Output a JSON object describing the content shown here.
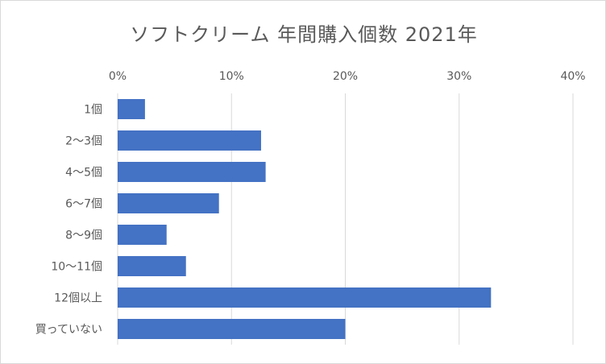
{
  "chart_data": {
    "type": "bar",
    "orientation": "horizontal",
    "title": "ソフトクリーム 年間購入個数 2021年",
    "categories": [
      "1個",
      "2〜3個",
      "4〜5個",
      "6〜7個",
      "8〜9個",
      "10〜11個",
      "12個以上",
      "買っていない"
    ],
    "values": [
      2.4,
      12.6,
      13.0,
      8.9,
      4.3,
      6.0,
      32.8,
      20.0
    ],
    "xlim": [
      0,
      40
    ],
    "xticks": [
      "0%",
      "10%",
      "20%",
      "30%",
      "40%"
    ],
    "xaxis_position": "top",
    "grid": true,
    "bar_color": "#4472c4",
    "grid_color": "#d9d9d9"
  }
}
